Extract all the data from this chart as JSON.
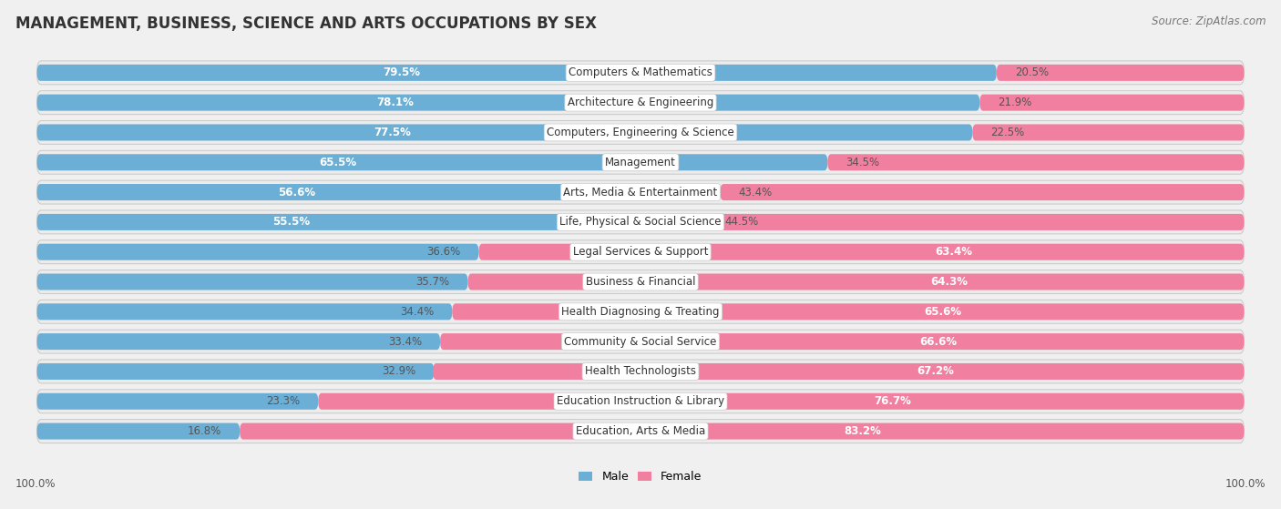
{
  "title": "MANAGEMENT, BUSINESS, SCIENCE AND ARTS OCCUPATIONS BY SEX",
  "source": "Source: ZipAtlas.com",
  "categories": [
    "Computers & Mathematics",
    "Architecture & Engineering",
    "Computers, Engineering & Science",
    "Management",
    "Arts, Media & Entertainment",
    "Life, Physical & Social Science",
    "Legal Services & Support",
    "Business & Financial",
    "Health Diagnosing & Treating",
    "Community & Social Service",
    "Health Technologists",
    "Education Instruction & Library",
    "Education, Arts & Media"
  ],
  "male_pct": [
    79.5,
    78.1,
    77.5,
    65.5,
    56.6,
    55.5,
    36.6,
    35.7,
    34.4,
    33.4,
    32.9,
    23.3,
    16.8
  ],
  "female_pct": [
    20.5,
    21.9,
    22.5,
    34.5,
    43.4,
    44.5,
    63.4,
    64.3,
    65.6,
    66.6,
    67.2,
    76.7,
    83.2
  ],
  "male_color": "#6baed6",
  "female_color": "#f07fa0",
  "male_label_color_inside": "#ffffff",
  "male_label_color_outside": "#666666",
  "female_label_color_inside": "#ffffff",
  "female_label_color_outside": "#666666",
  "male_label": "Male",
  "female_label": "Female",
  "bg_color": "#f0f0f0",
  "row_bg_color": "#e8e8e8",
  "bar_bg_color": "#ffffff",
  "title_fontsize": 12,
  "label_fontsize": 8.5,
  "source_fontsize": 8.5,
  "pct_fontsize": 8.5
}
